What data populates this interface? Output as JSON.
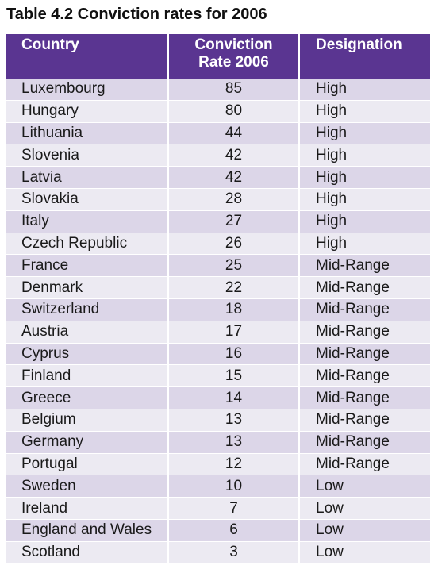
{
  "title": "Table 4.2 Conviction rates for 2006",
  "header": {
    "country": "Country",
    "rate_line1": "Conviction",
    "rate_line2": "Rate 2006",
    "designation": "Designation"
  },
  "rows": [
    {
      "country": "Luxembourg",
      "rate": "85",
      "designation": "High"
    },
    {
      "country": "Hungary",
      "rate": "80",
      "designation": "High"
    },
    {
      "country": "Lithuania",
      "rate": "44",
      "designation": "High"
    },
    {
      "country": "Slovenia",
      "rate": "42",
      "designation": "High"
    },
    {
      "country": "Latvia",
      "rate": "42",
      "designation": "High"
    },
    {
      "country": "Slovakia",
      "rate": "28",
      "designation": "High"
    },
    {
      "country": "Italy",
      "rate": "27",
      "designation": "High"
    },
    {
      "country": "Czech Republic",
      "rate": "26",
      "designation": "High"
    },
    {
      "country": "France",
      "rate": "25",
      "designation": "Mid-Range"
    },
    {
      "country": "Denmark",
      "rate": "22",
      "designation": "Mid-Range"
    },
    {
      "country": "Switzerland",
      "rate": "18",
      "designation": "Mid-Range"
    },
    {
      "country": "Austria",
      "rate": "17",
      "designation": "Mid-Range"
    },
    {
      "country": "Cyprus",
      "rate": "16",
      "designation": "Mid-Range"
    },
    {
      "country": "Finland",
      "rate": "15",
      "designation": "Mid-Range"
    },
    {
      "country": "Greece",
      "rate": "14",
      "designation": "Mid-Range"
    },
    {
      "country": "Belgium",
      "rate": "13",
      "designation": "Mid-Range"
    },
    {
      "country": "Germany",
      "rate": "13",
      "designation": "Mid-Range"
    },
    {
      "country": "Portugal",
      "rate": "12",
      "designation": "Mid-Range"
    },
    {
      "country": "Sweden",
      "rate": "10",
      "designation": "Low"
    },
    {
      "country": "Ireland",
      "rate": "7",
      "designation": "Low"
    },
    {
      "country": "England and Wales",
      "rate": "6",
      "designation": "Low"
    },
    {
      "country": "Scotland",
      "rate": "3",
      "designation": "Low"
    }
  ],
  "colors": {
    "header_bg": "#5a3591",
    "row_odd": "#dcd6e8",
    "row_even": "#eceaf2"
  }
}
